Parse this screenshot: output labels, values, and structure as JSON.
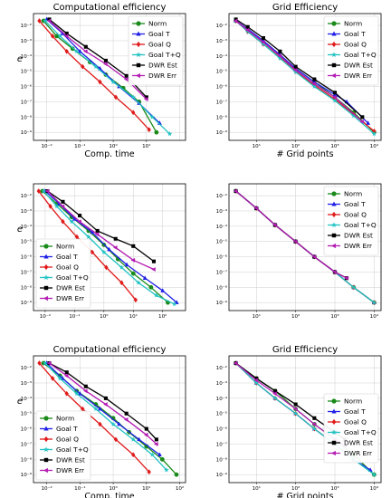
{
  "figure": {
    "series_style": [
      {
        "name": "Norm",
        "color": "#1a8a1a",
        "marker": "circle"
      },
      {
        "name": "Goal T",
        "color": "#1f1fe6",
        "marker": "triangle"
      },
      {
        "name": "Goal Q",
        "color": "#e01b1b",
        "marker": "diamond"
      },
      {
        "name": "Goal T+Q",
        "color": "#21c2c2",
        "marker": "star"
      },
      {
        "name": "DWR Est",
        "color": "#000000",
        "marker": "square"
      },
      {
        "name": "DWR Err",
        "color": "#b31bb3",
        "marker": "triangle-left"
      }
    ]
  },
  "chart_data": [
    {
      "type": "line",
      "title": "Computational efficiency",
      "xlabel": "Comp. time",
      "ylabel": "e",
      "xscale": "log",
      "yscale": "log",
      "xlim": [
        0.004,
        150
      ],
      "ylim": [
        3e-10,
        0.06
      ],
      "xticks": [
        "10⁻²",
        "10⁻¹",
        "10⁰",
        "10¹"
      ],
      "yticks": [
        "10⁻²",
        "10⁻³",
        "10⁻⁴",
        "10⁻⁵",
        "10⁻⁶",
        "10⁻⁷",
        "10⁻⁸",
        "10⁻⁹"
      ],
      "legend": "top-right",
      "grid": true,
      "series": [
        {
          "name": "Norm",
          "x": [
            0.008,
            0.02,
            0.06,
            0.2,
            0.6,
            2,
            6,
            20
          ],
          "y": [
            0.02,
            0.002,
            0.0003,
            4e-05,
            6e-06,
            8e-07,
            1e-07,
            1e-09
          ]
        },
        {
          "name": "Goal T",
          "x": [
            0.01,
            0.03,
            0.1,
            0.4,
            1.5,
            6,
            25
          ],
          "y": [
            0.025,
            0.003,
            0.0002,
            1.5e-05,
            1e-06,
            8e-08,
            4e-09
          ]
        },
        {
          "name": "Goal Q",
          "x": [
            0.006,
            0.015,
            0.04,
            0.12,
            0.4,
            1.2,
            4,
            12
          ],
          "y": [
            0.02,
            0.002,
            0.0002,
            2e-05,
            2e-06,
            2e-07,
            2e-08,
            1.5e-09
          ]
        },
        {
          "name": "Goal T+Q",
          "x": [
            0.009,
            0.025,
            0.08,
            0.3,
            1,
            4,
            15,
            50
          ],
          "y": [
            0.02,
            0.002,
            0.0002,
            2e-05,
            2e-06,
            2e-07,
            1e-08,
            8e-10
          ]
        },
        {
          "name": "DWR Est",
          "x": [
            0.012,
            0.04,
            0.15,
            0.6,
            2.5,
            10
          ],
          "y": [
            0.025,
            0.003,
            0.0004,
            5e-05,
            5e-06,
            2e-07
          ]
        },
        {
          "name": "DWR Err",
          "x": [
            0.012,
            0.04,
            0.15,
            0.6,
            2.5,
            10
          ],
          "y": [
            0.02,
            0.002,
            0.0002,
            3e-05,
            3e-06,
            1.5e-07
          ]
        }
      ]
    },
    {
      "type": "line",
      "title": "Grid Efficiency",
      "xlabel": "# Grid points",
      "ylabel": "",
      "xscale": "log",
      "yscale": "log",
      "xlim": [
        2,
        15000
      ],
      "ylim": [
        3e-10,
        0.06
      ],
      "xticks": [
        "10¹",
        "10²",
        "10³",
        "10⁴"
      ],
      "yticks": [
        "10⁻²",
        "10⁻³",
        "10⁻⁴",
        "10⁻⁵",
        "10⁻⁶",
        "10⁻⁷",
        "10⁻⁸",
        "10⁻⁹"
      ],
      "legend": "top-right",
      "grid": true,
      "series": [
        {
          "name": "Norm",
          "x": [
            3,
            6,
            15,
            40,
            100,
            300,
            1000,
            3000,
            10000
          ],
          "y": [
            0.02,
            0.005,
            0.0008,
            0.0001,
            1.5e-05,
            2e-06,
            2e-07,
            2e-08,
            1e-09
          ]
        },
        {
          "name": "Goal T",
          "x": [
            3,
            6,
            15,
            40,
            100,
            300,
            1000,
            2000,
            7000
          ],
          "y": [
            0.02,
            0.006,
            0.001,
            0.00012,
            1.5e-05,
            2e-06,
            3e-07,
            1e-07,
            4e-09
          ]
        },
        {
          "name": "Goal Q",
          "x": [
            3,
            6,
            15,
            40,
            100,
            300,
            1000,
            3000,
            10000
          ],
          "y": [
            0.02,
            0.004,
            0.0006,
            8e-05,
            1e-05,
            1.2e-06,
            1.5e-07,
            1.5e-08,
            1.2e-09
          ]
        },
        {
          "name": "Goal T+Q",
          "x": [
            3,
            6,
            15,
            40,
            100,
            300,
            1000,
            3000,
            10000
          ],
          "y": [
            0.02,
            0.004,
            0.0006,
            7e-05,
            9e-06,
            1e-06,
            1.2e-07,
            1.2e-08,
            8e-10
          ]
        },
        {
          "name": "DWR Est",
          "x": [
            3,
            6,
            15,
            40,
            100,
            300,
            1000,
            5000
          ],
          "y": [
            0.025,
            0.008,
            0.0015,
            0.0002,
            2e-05,
            3e-06,
            4e-07,
            1e-08
          ]
        },
        {
          "name": "DWR Err",
          "x": [
            3,
            6,
            15,
            40,
            100,
            300,
            1000,
            5000
          ],
          "y": [
            0.02,
            0.005,
            0.0008,
            0.0001,
            1.2e-05,
            1.5e-06,
            2e-07,
            5e-09
          ]
        }
      ]
    },
    {
      "type": "line",
      "title": "",
      "xlabel": "",
      "ylabel": "e",
      "xscale": "log",
      "yscale": "log",
      "xlim": [
        0.004,
        600
      ],
      "ylim": [
        3e-10,
        0.06
      ],
      "xticks": [
        "10⁻²",
        "10⁻¹",
        "10⁰",
        "10¹",
        "10²"
      ],
      "yticks": [
        "10⁻²",
        "10⁻³",
        "10⁻⁴",
        "10⁻⁵",
        "10⁻⁶",
        "10⁻⁷",
        "10⁻⁸",
        "10⁻⁹"
      ],
      "legend": "lower-left",
      "grid": true,
      "series": [
        {
          "name": "Norm",
          "x": [
            0.008,
            0.025,
            0.08,
            0.3,
            1,
            3,
            10,
            40,
            150
          ],
          "y": [
            0.02,
            0.003,
            0.0004,
            5e-05,
            6e-06,
            7e-07,
            8e-08,
            1e-08,
            1e-09
          ]
        },
        {
          "name": "Goal T",
          "x": [
            0.01,
            0.03,
            0.1,
            0.4,
            1.5,
            6,
            25,
            100,
            300
          ],
          "y": [
            0.02,
            0.003,
            0.0003,
            4e-05,
            3e-06,
            3e-07,
            4e-08,
            6e-09,
            1e-09
          ]
        },
        {
          "name": "Goal Q",
          "x": [
            0.006,
            0.015,
            0.04,
            0.12,
            0.4,
            1.2,
            4,
            12
          ],
          "y": [
            0.02,
            0.002,
            0.0002,
            2e-05,
            2e-06,
            2e-07,
            2e-08,
            1.5e-09
          ]
        },
        {
          "name": "Goal T+Q",
          "x": [
            0.009,
            0.025,
            0.08,
            0.3,
            1,
            4,
            15,
            60,
            250
          ],
          "y": [
            0.02,
            0.002,
            0.0002,
            2e-05,
            2e-06,
            2e-07,
            2e-08,
            3e-09,
            8e-10
          ]
        },
        {
          "name": "DWR Est",
          "x": [
            0.012,
            0.04,
            0.15,
            0.6,
            2.5,
            10,
            50
          ],
          "y": [
            0.02,
            0.004,
            0.0005,
            5e-05,
            1.5e-05,
            5e-06,
            5e-07
          ]
        },
        {
          "name": "DWR Err",
          "x": [
            0.012,
            0.04,
            0.15,
            0.6,
            2.5,
            10,
            50
          ],
          "y": [
            0.02,
            0.002,
            0.0002,
            3e-05,
            4e-06,
            6e-07,
            1.5e-07
          ]
        }
      ]
    },
    {
      "type": "line",
      "title": "",
      "xlabel": "",
      "ylabel": "",
      "xscale": "log",
      "yscale": "log",
      "xlim": [
        2,
        15000
      ],
      "ylim": [
        3e-10,
        0.06
      ],
      "xticks": [
        "10¹",
        "10²",
        "10³",
        "10⁴"
      ],
      "yticks": [
        "10⁻²",
        "10⁻³",
        "10⁻⁴",
        "10⁻⁵",
        "10⁻⁶",
        "10⁻⁷",
        "10⁻⁸",
        "10⁻⁹"
      ],
      "legend": "top-right",
      "grid": true,
      "series": [
        {
          "name": "Norm",
          "x": [
            3,
            10,
            30,
            100,
            300,
            1000,
            3000,
            10000
          ],
          "y": [
            0.02,
            0.0015,
            0.00012,
            1e-05,
            1e-06,
            1e-07,
            1e-08,
            1e-09
          ]
        },
        {
          "name": "Goal T",
          "x": [
            3,
            10,
            30,
            100,
            300,
            1000,
            3000,
            10000
          ],
          "y": [
            0.02,
            0.0015,
            0.00012,
            1e-05,
            1e-06,
            1e-07,
            1e-08,
            1e-09
          ]
        },
        {
          "name": "Goal Q",
          "x": [
            3,
            10,
            30,
            100,
            300,
            1000,
            3000,
            10000
          ],
          "y": [
            0.02,
            0.0015,
            0.00012,
            1e-05,
            1e-06,
            1e-07,
            1e-08,
            1e-09
          ]
        },
        {
          "name": "Goal T+Q",
          "x": [
            3,
            10,
            30,
            100,
            300,
            1000,
            3000,
            10000
          ],
          "y": [
            0.02,
            0.0015,
            0.00012,
            1e-05,
            1e-06,
            1e-07,
            1e-08,
            1e-09
          ]
        },
        {
          "name": "DWR Est",
          "x": [
            3,
            10,
            30,
            100,
            300,
            1000,
            2000
          ],
          "y": [
            0.02,
            0.0015,
            0.00012,
            1e-05,
            1e-06,
            1e-07,
            4e-08
          ]
        },
        {
          "name": "DWR Err",
          "x": [
            3,
            10,
            30,
            100,
            300,
            1000,
            2000
          ],
          "y": [
            0.02,
            0.0015,
            0.00012,
            1e-05,
            1e-06,
            1e-07,
            4e-08
          ]
        }
      ]
    },
    {
      "type": "line",
      "title": "Computational efficiency",
      "xlabel": "Comp. time",
      "ylabel": "e",
      "xscale": "log",
      "yscale": "log",
      "xlim": [
        0.004,
        150
      ],
      "ylim": [
        3e-10,
        0.06
      ],
      "xticks": [
        "10⁻²",
        "10⁻¹",
        "10⁰",
        "10¹",
        "10²"
      ],
      "yticks": [
        "10⁻²",
        "10⁻³",
        "10⁻⁴",
        "10⁻⁵",
        "10⁻⁶",
        "10⁻⁷",
        "10⁻⁸",
        "10⁻⁹"
      ],
      "legend": "lower-left",
      "grid": true,
      "series": [
        {
          "name": "Norm",
          "x": [
            0.008,
            0.025,
            0.08,
            0.3,
            1,
            3,
            10,
            30,
            80
          ],
          "y": [
            0.02,
            0.003,
            0.0003,
            4e-05,
            5e-06,
            6e-07,
            7e-08,
            1e-08,
            1e-09
          ]
        },
        {
          "name": "Goal T",
          "x": [
            0.01,
            0.03,
            0.1,
            0.4,
            1.5,
            6,
            25
          ],
          "y": [
            0.02,
            0.002,
            0.0002,
            2e-05,
            2e-06,
            2e-07,
            2e-08
          ]
        },
        {
          "name": "Goal Q",
          "x": [
            0.006,
            0.015,
            0.04,
            0.12,
            0.4,
            1.2,
            4,
            12
          ],
          "y": [
            0.02,
            0.002,
            0.0002,
            2e-05,
            2e-06,
            2e-07,
            2e-08,
            1.5e-09
          ]
        },
        {
          "name": "Goal T+Q",
          "x": [
            0.009,
            0.025,
            0.08,
            0.3,
            1,
            4,
            15,
            40
          ],
          "y": [
            0.02,
            0.002,
            0.0002,
            2e-05,
            2e-06,
            2e-07,
            2e-08,
            2e-09
          ]
        },
        {
          "name": "DWR Est",
          "x": [
            0.012,
            0.04,
            0.15,
            0.6,
            2.5,
            10,
            20
          ],
          "y": [
            0.02,
            0.005,
            0.0006,
            0.0001,
            1e-05,
            1e-06,
            2e-07
          ]
        },
        {
          "name": "DWR Err",
          "x": [
            0.012,
            0.04,
            0.15,
            0.6,
            2.5,
            10,
            20
          ],
          "y": [
            0.02,
            0.003,
            0.0003,
            4e-05,
            4e-06,
            4e-07,
            1e-07
          ]
        }
      ]
    },
    {
      "type": "line",
      "title": "Grid Efficiency",
      "xlabel": "# Grid points",
      "ylabel": "",
      "xscale": "log",
      "yscale": "log",
      "xlim": [
        2,
        15000
      ],
      "ylim": [
        3e-10,
        0.06
      ],
      "xticks": [
        "10¹",
        "10²",
        "10³",
        "10⁴"
      ],
      "yticks": [
        "10⁻²",
        "10⁻³",
        "10⁻⁴",
        "10⁻⁵",
        "10⁻⁶",
        "10⁻⁷",
        "10⁻⁸",
        "10⁻⁹"
      ],
      "legend": "right",
      "grid": true,
      "series": [
        {
          "name": "Norm",
          "x": [
            3,
            10,
            30,
            100,
            300,
            1000,
            3000,
            10000
          ],
          "y": [
            0.02,
            0.002,
            0.0003,
            2e-05,
            2e-06,
            2e-07,
            2e-08,
            1e-09
          ]
        },
        {
          "name": "Goal T",
          "x": [
            3,
            10,
            30,
            100,
            300,
            1000,
            3000,
            8000
          ],
          "y": [
            0.02,
            0.001,
            0.0001,
            1e-05,
            1e-06,
            1e-07,
            1e-08,
            2e-09
          ]
        },
        {
          "name": "Goal Q",
          "x": [
            3,
            10,
            30,
            100,
            300,
            1000,
            3000
          ],
          "y": [
            0.02,
            0.001,
            0.0001,
            1e-05,
            1e-06,
            1e-07,
            1e-08
          ]
        },
        {
          "name": "Goal T+Q",
          "x": [
            3,
            10,
            30,
            100,
            300,
            1000,
            3000,
            10000
          ],
          "y": [
            0.02,
            0.001,
            0.0001,
            1e-05,
            1e-06,
            1e-07,
            1e-08,
            1e-09
          ]
        },
        {
          "name": "DWR Est",
          "x": [
            3,
            10,
            30,
            100,
            300,
            1000,
            1800
          ],
          "y": [
            0.02,
            0.002,
            0.0003,
            4e-05,
            5e-06,
            6e-07,
            2e-07
          ]
        },
        {
          "name": "DWR Err",
          "x": [
            3,
            10,
            30,
            100,
            300,
            1000,
            1800
          ],
          "y": [
            0.02,
            0.0015,
            0.0002,
            2e-05,
            2e-06,
            2e-07,
            8e-08
          ]
        }
      ]
    }
  ]
}
